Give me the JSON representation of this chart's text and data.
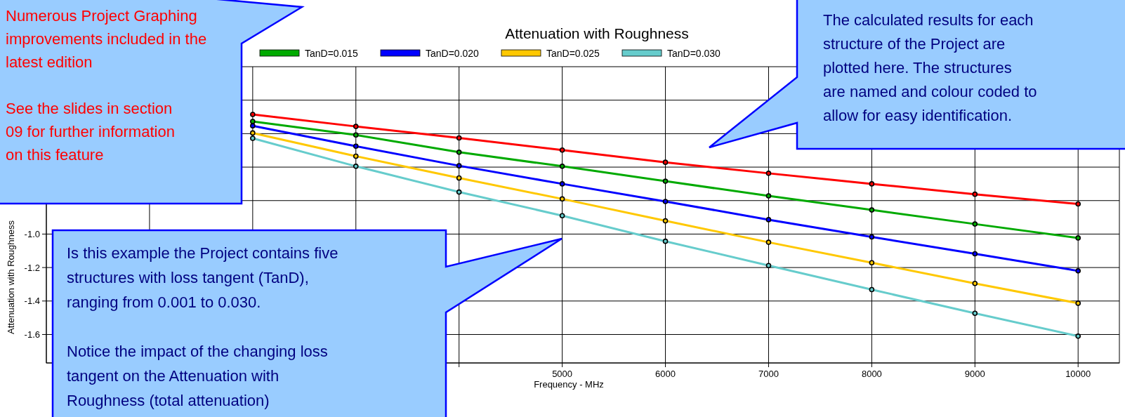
{
  "chart_data": {
    "type": "line",
    "title": "Attenuation with Roughness",
    "xlabel": "Frequency - MHz",
    "ylabel": "Attenuation with Roughness",
    "x": [
      2000,
      3000,
      4000,
      5000,
      6000,
      7000,
      8000,
      9000,
      10000
    ],
    "series": [
      {
        "color": "#ff0000",
        "values": [
          -0.285,
          -0.357,
          -0.426,
          -0.498,
          -0.571,
          -0.637,
          -0.7,
          -0.762,
          -0.82
        ]
      },
      {
        "name": "TanD=0.015",
        "color": "#00aa00",
        "values": [
          -0.327,
          -0.408,
          -0.511,
          -0.595,
          -0.684,
          -0.772,
          -0.856,
          -0.94,
          -1.023
        ]
      },
      {
        "name": "TanD=0.020",
        "color": "#0000ff",
        "values": [
          -0.353,
          -0.475,
          -0.592,
          -0.7,
          -0.805,
          -0.914,
          -1.017,
          -1.118,
          -1.22
        ]
      },
      {
        "name": "TanD=0.025",
        "color": "#ffc800",
        "values": [
          -0.396,
          -0.535,
          -0.665,
          -0.79,
          -0.921,
          -1.049,
          -1.171,
          -1.295,
          -1.413
        ]
      },
      {
        "name": "TanD=0.030",
        "color": "#66cccc",
        "values": [
          -0.428,
          -0.595,
          -0.749,
          -0.89,
          -1.043,
          -1.188,
          -1.332,
          -1.473,
          -1.61
        ]
      }
    ],
    "xlim": [
      0,
      10400
    ],
    "ylim": [
      -1.77,
      0
    ],
    "xticks": [
      {
        "value": 1000,
        "label": null
      },
      {
        "value": 2000,
        "label": null
      },
      {
        "value": 3000,
        "label": null
      },
      {
        "value": 4000,
        "label": null
      },
      5000,
      6000,
      7000,
      8000,
      9000,
      10000
    ],
    "yticks": [
      {
        "value": -0.2,
        "label": null
      },
      {
        "value": -0.4,
        "label": null
      },
      {
        "value": -0.6,
        "label": null
      },
      {
        "value": -0.8,
        "label": null
      },
      {
        "value": -1,
        "label": "-1.0"
      },
      -1.2,
      -1.4,
      -1.6
    ],
    "grid": true,
    "legend": "top",
    "marker": "circle",
    "line_style": "solid",
    "annotations": [
      "Numerous Project Graphing\nimprovements included in the\nlatest edition\n\nSee the slides in section\n09 for further information\non this feature",
      "The calculated results for each\nstructure of the Project are\nplotted here.  The structures\nare named and colour coded to\nallow for easy identification.",
      "Is this example the Project contains five\nstructures with loss tangent (TanD),\nranging from 0.001 to 0.030.\n\nNotice the impact of the changing loss\ntangent on the Attenuation with\nRoughness (total attenuation)"
    ]
  }
}
